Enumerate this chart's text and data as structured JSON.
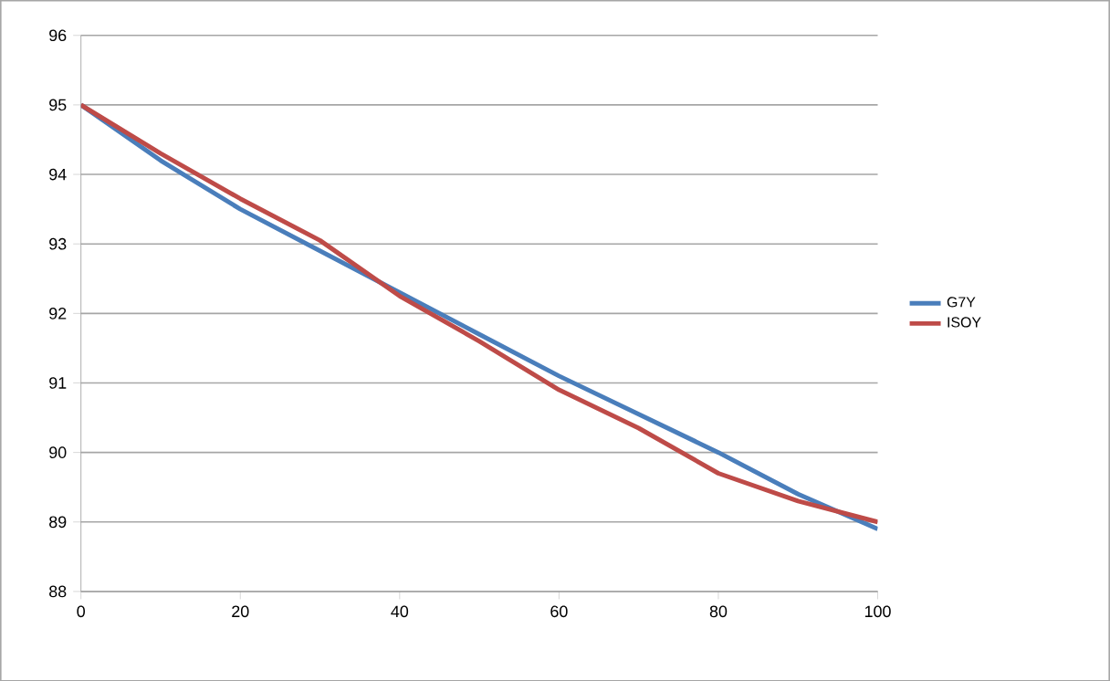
{
  "chart_data": {
    "type": "line",
    "x": [
      0,
      10,
      20,
      30,
      40,
      50,
      60,
      70,
      80,
      90,
      100
    ],
    "series": [
      {
        "name": "G7Y",
        "color": "#4a7ebb",
        "values": [
          95,
          94.2,
          93.5,
          92.9,
          92.3,
          91.7,
          91.1,
          90.55,
          90.0,
          89.4,
          88.9
        ]
      },
      {
        "name": "ISOY",
        "color": "#be4b48",
        "values": [
          95,
          94.3,
          93.65,
          93.05,
          92.25,
          91.6,
          90.9,
          90.35,
          89.7,
          89.3,
          89.0
        ]
      }
    ],
    "xlim": [
      0,
      100
    ],
    "xticks": [
      0,
      20,
      40,
      60,
      80,
      100
    ],
    "ylim": [
      88,
      96
    ],
    "yticks": [
      88,
      89,
      90,
      91,
      92,
      93,
      94,
      95,
      96
    ],
    "grid": "y",
    "legend": "right",
    "marker": "none",
    "line_style": "solid"
  }
}
